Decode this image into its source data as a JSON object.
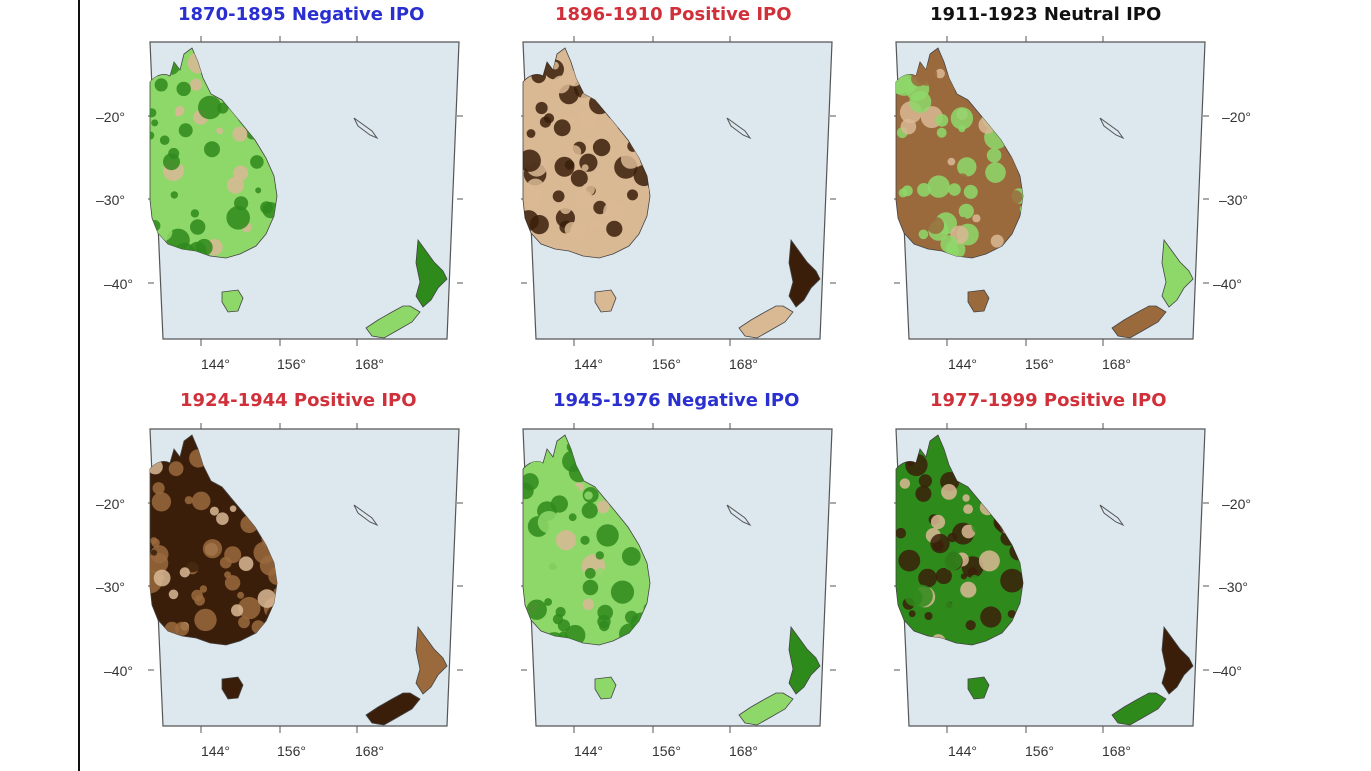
{
  "panels": [
    {
      "title": "1870-1895 Negative IPO",
      "title_color": "#2a2fd0",
      "pattern": "green-light"
    },
    {
      "title": "1896-1910 Positive IPO",
      "title_color": "#d0303a",
      "pattern": "brown-mixed"
    },
    {
      "title": "1911-1923 Neutral IPO",
      "title_color": "#111111",
      "pattern": "mixed"
    },
    {
      "title": "1924-1944 Positive IPO",
      "title_color": "#d0303a",
      "pattern": "brown-dark"
    },
    {
      "title": "1945-1976 Negative IPO",
      "title_color": "#2a2fd0",
      "pattern": "green-mixed"
    },
    {
      "title": "1977-1999 Positive IPO",
      "title_color": "#d0303a",
      "pattern": "green-dark"
    }
  ],
  "axes": {
    "lon_ticks": [
      "144°",
      "156°",
      "168°"
    ],
    "lat_ticks": [
      "–20°",
      "–30°",
      "–40°"
    ]
  },
  "colors": {
    "ocean": "#dde7ee",
    "land_green_light": "#8ed86a",
    "land_green_dark": "#2f8a1c",
    "land_brown_light": "#d9b894",
    "land_brown_mid": "#9a6a3d",
    "land_brown_dark": "#3a1e0a"
  }
}
